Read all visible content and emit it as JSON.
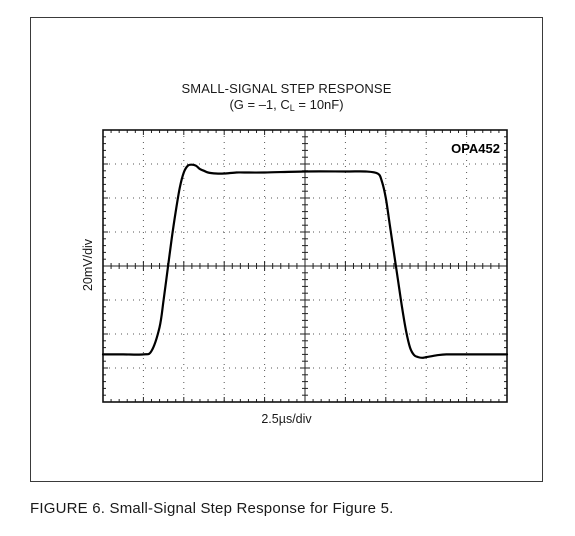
{
  "figure": {
    "caption": "FIGURE 6. Small-Signal Step Response for Figure 5."
  },
  "chart_data": {
    "type": "line",
    "title": "SMALL-SIGNAL STEP RESPONSE",
    "subtitle": {
      "prefix": "(G = –1, C",
      "sub": "L",
      "suffix": " = 10nF)"
    },
    "device_label": "OPA452",
    "xlabel": "2.5µs/div",
    "ylabel": "20mV/div",
    "grid": true,
    "xlim": [
      -5,
      5
    ],
    "ylim": [
      -4,
      4
    ],
    "divisions": {
      "x": 10,
      "y": 8
    },
    "x": [
      -5.0,
      -4.5,
      -4.0,
      -3.8,
      -3.6,
      -3.5,
      -3.4,
      -3.3,
      -3.2,
      -3.1,
      -3.0,
      -2.9,
      -2.8,
      -2.7,
      -2.6,
      -2.5,
      -2.4,
      -2.2,
      -2.0,
      -1.7,
      -1.5,
      -1.0,
      0.0,
      1.0,
      1.5,
      1.8,
      1.9,
      2.0,
      2.1,
      2.2,
      2.3,
      2.4,
      2.5,
      2.6,
      2.7,
      2.8,
      2.9,
      3.0,
      3.1,
      3.3,
      3.5,
      3.8,
      4.0,
      4.5,
      5.0
    ],
    "y": [
      -2.6,
      -2.6,
      -2.6,
      -2.5,
      -1.8,
      -1.0,
      -0.1,
      0.8,
      1.6,
      2.3,
      2.75,
      2.95,
      2.98,
      2.95,
      2.85,
      2.8,
      2.75,
      2.72,
      2.72,
      2.75,
      2.75,
      2.75,
      2.78,
      2.78,
      2.78,
      2.72,
      2.5,
      2.0,
      1.2,
      0.4,
      -0.4,
      -1.2,
      -1.9,
      -2.4,
      -2.62,
      -2.68,
      -2.7,
      -2.68,
      -2.66,
      -2.62,
      -2.6,
      -2.6,
      -2.6,
      -2.6,
      -2.6
    ]
  }
}
